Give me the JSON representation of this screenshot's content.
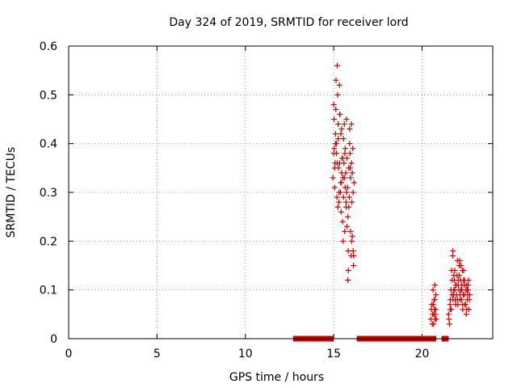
{
  "chart_data": {
    "type": "scatter",
    "title": "Day 324 of 2019, SRMTID for receiver lord",
    "xlabel": "GPS time / hours",
    "ylabel": "SRMTID / TECUs",
    "xlim": [
      0,
      24
    ],
    "ylim": [
      0,
      0.6
    ],
    "grid": true,
    "marker": "+",
    "marker_color": "#cc0000",
    "x_ticks": [
      0,
      5,
      10,
      15,
      20
    ],
    "y_ticks": [
      0,
      0.1,
      0.2,
      0.3,
      0.4,
      0.5,
      0.6
    ],
    "x_tick_labels": [
      "0",
      "5",
      "10",
      "15",
      "20"
    ],
    "y_tick_labels": [
      "0",
      "0.1",
      "0.2",
      "0.3",
      "0.4",
      "0.5",
      "0.6"
    ],
    "series": [
      {
        "name": "SRMTID",
        "x": [
          14.95,
          15.0,
          15.02,
          15.05,
          15.08,
          15.1,
          15.12,
          15.15,
          15.18,
          15.2,
          15.22,
          15.25,
          15.27,
          15.3,
          15.32,
          15.35,
          15.38,
          15.4,
          15.42,
          15.45,
          15.48,
          15.5,
          15.52,
          15.55,
          15.58,
          15.6,
          15.62,
          15.65,
          15.68,
          15.7,
          15.72,
          15.75,
          15.78,
          15.8,
          15.82,
          15.85,
          15.88,
          15.9,
          15.92,
          15.95,
          15.98,
          16.0,
          16.02,
          16.05,
          16.08,
          16.1,
          16.12,
          16.15,
          15.0,
          15.1,
          15.2,
          15.3,
          15.4,
          15.5,
          15.6,
          15.7,
          15.8,
          15.9,
          16.0,
          16.1,
          15.05,
          15.15,
          15.25,
          15.35,
          15.45,
          15.55,
          15.65,
          15.75,
          15.85,
          15.95,
          16.05,
          15.03,
          15.13,
          15.23,
          15.33,
          15.43,
          15.53,
          15.63,
          15.73,
          15.83,
          15.93,
          16.03,
          16.13,
          20.5,
          20.55,
          20.6,
          20.62,
          20.65,
          20.68,
          20.7,
          20.72,
          20.75,
          20.78,
          20.8,
          20.52,
          20.58,
          20.63,
          20.67,
          20.71,
          20.74,
          20.77,
          21.5,
          21.55,
          21.6,
          21.65,
          21.7,
          21.75,
          21.8,
          21.85,
          21.9,
          21.95,
          22.0,
          22.05,
          22.1,
          22.15,
          22.2,
          22.25,
          22.3,
          22.35,
          22.4,
          22.45,
          22.5,
          22.55,
          22.6,
          22.65,
          22.7,
          21.52,
          21.58,
          21.63,
          21.68,
          21.73,
          21.78,
          21.83,
          21.88,
          21.93,
          21.98,
          22.03,
          22.08,
          22.13,
          22.18,
          22.23,
          22.28,
          22.33,
          22.38,
          22.43,
          22.48,
          22.53,
          22.58,
          22.63,
          22.68,
          21.6,
          21.7,
          21.8,
          21.9,
          22.0,
          22.1,
          22.2,
          22.3,
          22.4,
          22.5,
          22.6,
          21.75,
          21.85,
          22.05,
          22.15,
          22.25,
          22.35,
          22.45,
          22.55
        ],
        "y": [
          0.33,
          0.38,
          0.45,
          0.31,
          0.36,
          0.42,
          0.47,
          0.4,
          0.29,
          0.56,
          0.5,
          0.44,
          0.35,
          0.28,
          0.52,
          0.46,
          0.3,
          0.32,
          0.26,
          0.43,
          0.37,
          0.24,
          0.33,
          0.41,
          0.36,
          0.44,
          0.22,
          0.39,
          0.34,
          0.27,
          0.45,
          0.37,
          0.31,
          0.12,
          0.18,
          0.35,
          0.29,
          0.43,
          0.38,
          0.33,
          0.17,
          0.44,
          0.2,
          0.34,
          0.39,
          0.18,
          0.15,
          0.32,
          0.48,
          0.4,
          0.36,
          0.3,
          0.42,
          0.37,
          0.33,
          0.28,
          0.25,
          0.4,
          0.36,
          0.3,
          0.35,
          0.38,
          0.41,
          0.46,
          0.34,
          0.29,
          0.31,
          0.23,
          0.27,
          0.22,
          0.21,
          0.39,
          0.53,
          0.27,
          0.36,
          0.32,
          0.2,
          0.38,
          0.3,
          0.14,
          0.35,
          0.28,
          0.17,
          0.04,
          0.07,
          0.05,
          0.1,
          0.03,
          0.08,
          0.06,
          0.11,
          0.05,
          0.09,
          0.04,
          0.06,
          0.03,
          0.07,
          0.05,
          0.08,
          0.04,
          0.06,
          0.05,
          0.03,
          0.08,
          0.06,
          0.12,
          0.18,
          0.1,
          0.14,
          0.07,
          0.09,
          0.16,
          0.11,
          0.13,
          0.08,
          0.15,
          0.1,
          0.06,
          0.12,
          0.09,
          0.07,
          0.11,
          0.08,
          0.1,
          0.06,
          0.09,
          0.04,
          0.07,
          0.1,
          0.14,
          0.17,
          0.09,
          0.12,
          0.08,
          0.11,
          0.13,
          0.07,
          0.1,
          0.16,
          0.12,
          0.08,
          0.14,
          0.09,
          0.11,
          0.07,
          0.1,
          0.06,
          0.09,
          0.12,
          0.08,
          0.06,
          0.09,
          0.13,
          0.11,
          0.08,
          0.15,
          0.1,
          0.07,
          0.12,
          0.05,
          0.11,
          0.08,
          0.1,
          0.12,
          0.09,
          0.11,
          0.14,
          0.07,
          0.1
        ]
      },
      {
        "name": "zero-baseline",
        "x_ranges": [
          [
            12.7,
            15.0
          ],
          [
            16.3,
            20.8
          ],
          [
            21.1,
            21.5
          ]
        ],
        "y": 0
      }
    ]
  }
}
